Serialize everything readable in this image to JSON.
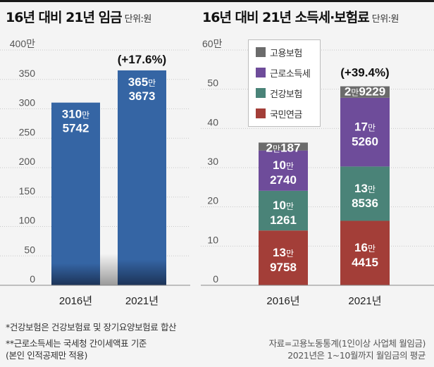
{
  "left": {
    "title": "16년 대비 21년 임금",
    "unit": "단위:원"
  },
  "right": {
    "title": "16년 대비 21년 소득세·보험료",
    "unit": "단위:원"
  },
  "chart_data": [
    {
      "type": "bar",
      "title": "16년 대비 21년 임금",
      "unit_label": "단위:원",
      "categories": [
        "2016년",
        "2021년"
      ],
      "values": [
        3105742,
        3653673
      ],
      "value_labels": [
        [
          "310만",
          "5742"
        ],
        [
          "365만",
          "3673"
        ]
      ],
      "annotation": "(+17.6%)",
      "ylim": [
        0,
        400
      ],
      "yunit": "만원",
      "yticks": [
        "0",
        "50",
        "100",
        "150",
        "200",
        "250",
        "300",
        "350",
        "400만"
      ],
      "ytick_values": [
        0,
        50,
        100,
        150,
        200,
        250,
        300,
        350,
        400
      ],
      "grid": true,
      "color": "#3565a4"
    },
    {
      "type": "bar",
      "stacked": true,
      "title": "16년 대비 21년 소득세·보험료",
      "unit_label": "단위:원",
      "categories": [
        "2016년",
        "2021년"
      ],
      "series": [
        {
          "name": "국민연금",
          "color": "#a33e38",
          "values": [
            139758,
            164415
          ],
          "labels": [
            [
              "13만",
              "9758"
            ],
            [
              "16만",
              "4415"
            ]
          ]
        },
        {
          "name": "건강보험",
          "color": "#4a8378",
          "values": [
            101261,
            138536
          ],
          "labels": [
            [
              "10만",
              "1261"
            ],
            [
              "13만",
              "8536"
            ]
          ]
        },
        {
          "name": "근로소득세",
          "color": "#6e4c9a",
          "values": [
            102740,
            175260
          ],
          "labels": [
            [
              "10만",
              "2740"
            ],
            [
              "17만",
              "5260"
            ]
          ]
        },
        {
          "name": "고용보험",
          "color": "#6b6b6b",
          "values": [
            20187,
            29229
          ],
          "labels": [
            [
              "2만187"
            ],
            [
              "2만9229"
            ]
          ]
        }
      ],
      "legend": [
        "고용보험",
        "근로소득세",
        "건강보험",
        "국민연금"
      ],
      "legend_position": "top-left",
      "annotation": "(+39.4%)",
      "ylim": [
        0,
        60
      ],
      "yunit": "만원",
      "yticks": [
        "0",
        "10",
        "20",
        "30",
        "40",
        "50",
        "60만"
      ],
      "ytick_values": [
        0,
        10,
        20,
        30,
        40,
        50,
        60
      ],
      "grid": true
    }
  ],
  "footnotes": [
    "*건강보험은 건강보험료 및 장기요양보험료 합산",
    "**근로소득세는 국세청 간이세액표 기준",
    "(본인 인적공제만 적용)"
  ],
  "source": [
    "자료=고용노동통계(1인이상 사업체 월임금)",
    "2021년은 1~10월까지 월임금의 평균"
  ]
}
